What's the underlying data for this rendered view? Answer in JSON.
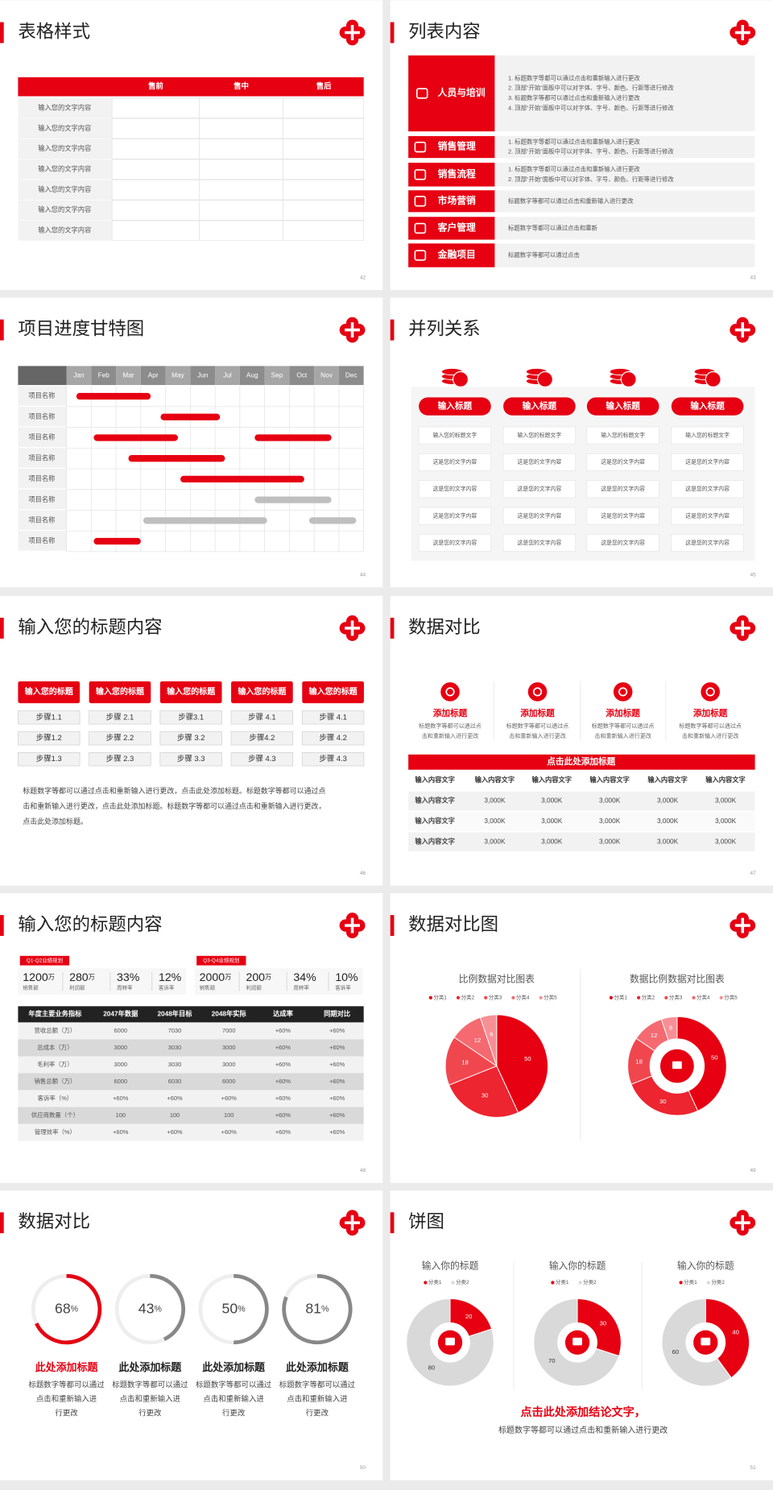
{
  "slides": [
    {
      "title": "表格样式",
      "page": "42",
      "table": {
        "header": [
          "售前",
          "售中",
          "售后"
        ],
        "rows": [
          "输入您的文字内容",
          "输入您的文字内容",
          "输入您的文字内容",
          "输入您的文字内容",
          "输入您的文字内容",
          "输入您的文字内容",
          "输入您的文字内容"
        ]
      }
    },
    {
      "title": "列表内容",
      "page": "43",
      "list": [
        {
          "label": "人员与培训",
          "lines": [
            "1. 标题数字等都可以通过点击和重新输入进行更改",
            "2. 顶部“开始”面板中可以对字体、字号、颜色、行距等进行修改",
            "3. 标题数字等都可以通过点击和重新输入进行更改",
            "4. 顶部“开始”面板中可以对字体、字号、颜色、行距等进行修改"
          ]
        },
        {
          "label": "销售管理",
          "lines": [
            "1. 标题数字等都可以通过点击和重新输入进行更改",
            "2. 顶部“开始”面板中可以对字体、字号、颜色、行距等进行修改"
          ]
        },
        {
          "label": "销售流程",
          "lines": [
            "1. 标题数字等都可以通过点击和重新输入进行更改",
            "2. 顶部“开始”面板中可以对字体、字号、颜色、行距等进行修改"
          ]
        },
        {
          "label": "市场营销",
          "lines": [
            "标题数字等都可以通过点击和重新输入进行更改"
          ]
        },
        {
          "label": "客户管理",
          "lines": [
            "标题数字等都可以通过点击和重新"
          ]
        },
        {
          "label": "金融项目",
          "lines": [
            "标题数字等都可以通过点击"
          ]
        }
      ]
    },
    {
      "title": "项目进度甘特图",
      "page": "44",
      "gantt": {
        "months": [
          "Jan",
          "Feb",
          "Mar",
          "Apr",
          "May",
          "Jun",
          "Jul",
          "Aug",
          "Sep",
          "Oct",
          "Nov",
          "Dec"
        ],
        "tasks": [
          {
            "label": "项目名称",
            "bars": [
              {
                "start": 0.4,
                "end": 3.4,
                "color": "#e60012"
              }
            ]
          },
          {
            "label": "项目名称",
            "bars": [
              {
                "start": 3.8,
                "end": 6.2,
                "color": "#e60012"
              }
            ]
          },
          {
            "label": "项目名称",
            "bars": [
              {
                "start": 1.1,
                "end": 4.5,
                "color": "#e60012"
              },
              {
                "start": 7.6,
                "end": 10.7,
                "color": "#e60012"
              }
            ]
          },
          {
            "label": "项目名称",
            "bars": [
              {
                "start": 2.5,
                "end": 6.4,
                "color": "#e60012"
              }
            ]
          },
          {
            "label": "项目名称",
            "bars": [
              {
                "start": 4.6,
                "end": 9.6,
                "color": "#e60012"
              }
            ]
          },
          {
            "label": "项目名称",
            "bars": [
              {
                "start": 7.6,
                "end": 10.7,
                "color": "#bfbfbf"
              }
            ]
          },
          {
            "label": "项目名称",
            "bars": [
              {
                "start": 3.1,
                "end": 8.1,
                "color": "#bfbfbf"
              },
              {
                "start": 9.8,
                "end": 11.7,
                "color": "#bfbfbf"
              }
            ]
          },
          {
            "label": "项目名称",
            "bars": [
              {
                "start": 1.1,
                "end": 3.0,
                "color": "#e60012"
              }
            ]
          }
        ]
      }
    },
    {
      "title": "并列关系",
      "page": "45",
      "columns": [
        {
          "heading": "输入标题",
          "cells": [
            "输入您的标题文字",
            "这是您的文字内容",
            "这是您的文字内容",
            "这是您的文字内容",
            "这是您的文字内容"
          ]
        },
        {
          "heading": "输入标题",
          "cells": [
            "输入您的标题文字",
            "这是您的文字内容",
            "这是您的文字内容",
            "这是您的文字内容",
            "这是您的文字内容"
          ]
        },
        {
          "heading": "输入标题",
          "cells": [
            "输入您的标题文字",
            "这是您的文字内容",
            "这是您的文字内容",
            "这是您的文字内容",
            "这是您的文字内容"
          ]
        },
        {
          "heading": "输入标题",
          "cells": [
            "输入您的标题文字",
            "这是您的文字内容",
            "这是您的文字内容",
            "这是您的文字内容",
            "这是您的文字内容"
          ]
        }
      ]
    },
    {
      "title": "输入您的标题内容",
      "page": "46",
      "steps": [
        {
          "heading": "输入您的标题",
          "items": [
            "步骤1.1",
            "步骤1.2",
            "步骤1.3"
          ]
        },
        {
          "heading": "输入您的标题",
          "items": [
            "步骤 2.1",
            "步骤 2.2",
            "步骤 2.3"
          ]
        },
        {
          "heading": "输入您的标题",
          "items": [
            "步骤3.1",
            "步骤 3.2",
            "步骤 3.3"
          ]
        },
        {
          "heading": "输入您的标题",
          "items": [
            "步骤 4.1",
            "步骤4.2",
            "步骤 4.3"
          ]
        },
        {
          "heading": "输入您的标题",
          "items": [
            "步骤 4.1",
            "步骤 4.2",
            "步骤 4.3"
          ]
        }
      ],
      "paragraph": [
        "标题数字等都可以通过点击和重新输入进行更改，点击此处添加标题。标题数字等都可以通过点",
        "击和重新输入进行更改，点击此处添加标题。标题数字等都可以通过点击和重新输入进行更改，",
        "点击此处添加标题。"
      ]
    },
    {
      "title": "数据对比",
      "page": "47",
      "items": [
        {
          "title": "添加标题",
          "text": [
            "标题数字等都可以通过点",
            "击和重新输入进行更改"
          ]
        },
        {
          "title": "添加标题",
          "text": [
            "标题数字等都可以通过点",
            "击和重新输入进行更改"
          ]
        },
        {
          "title": "添加标题",
          "text": [
            "标题数字等都可以通过点",
            "击和重新输入进行更改"
          ]
        },
        {
          "title": "添加标题",
          "text": [
            "标题数字等都可以通过点",
            "击和重新输入进行更改"
          ]
        }
      ],
      "banner": "点击此处添加标题",
      "table": {
        "header": [
          "输入内容文字",
          "输入内容文字",
          "输入内容文字",
          "输入内容文字",
          "输入内容文字",
          "输入内容文字"
        ],
        "rows": [
          [
            "输入内容文字",
            "3,000K",
            "3,000K",
            "3,000K",
            "3,000K",
            "3,000K"
          ],
          [
            "输入内容文字",
            "3,000K",
            "3,000K",
            "3,000K",
            "3,000K",
            "3,000K"
          ],
          [
            "输入内容文字",
            "3,000K",
            "3,000K",
            "3,000K",
            "3,000K",
            "3,000K"
          ]
        ]
      }
    },
    {
      "title": "输入您的标题内容",
      "page": "48",
      "groups": [
        {
          "tag": "Q1-Q2业绩规划",
          "stats": [
            {
              "value": "1200",
              "unit": "万",
              "label": "销售额"
            },
            {
              "value": "280",
              "unit": "万",
              "label": "利润额"
            },
            {
              "value": "33%",
              "label": "周转率"
            },
            {
              "value": "12%",
              "label": "客诉率"
            }
          ]
        },
        {
          "tag": "Q3-Q4业绩规划",
          "stats": [
            {
              "value": "2000",
              "unit": "万",
              "label": "销售额"
            },
            {
              "value": "200",
              "unit": "万",
              "label": "利润额"
            },
            {
              "value": "34%",
              "label": "周转率"
            },
            {
              "value": "10%",
              "label": "客诉率"
            }
          ]
        }
      ],
      "table": {
        "header": [
          "年度主要业务指标",
          "2047年数据",
          "2048年目标",
          "2048年实际",
          "达成率",
          "同期对比"
        ],
        "rows": [
          [
            "营收总额（万）",
            "6000",
            "7030",
            "7000",
            "+60%",
            "+60%"
          ],
          [
            "总成本（万）",
            "3000",
            "3030",
            "3000",
            "+60%",
            "+60%"
          ],
          [
            "毛利率（万）",
            "3000",
            "3030",
            "3000",
            "+60%",
            "+60%"
          ],
          [
            "销售总额（万）",
            "6000",
            "6030",
            "6000",
            "+60%",
            "+60%"
          ],
          [
            "客诉率（%）",
            "+60%",
            "+60%",
            "+60%",
            "+60%",
            "+60%"
          ],
          [
            "供应商数量（个）",
            "100",
            "100",
            "100",
            "+60%",
            "+60%"
          ],
          [
            "管理效率（%）",
            "+60%",
            "+60%",
            "+60%",
            "+60%",
            "+60%"
          ]
        ]
      }
    },
    {
      "title": "数据对比图",
      "page": "49",
      "charts": [
        {
          "type": "pie",
          "title": "比例数据对比图表",
          "categories": [
            "分类1",
            "分类2",
            "分类3",
            "分类4",
            "分类5"
          ],
          "values": [
            50,
            30,
            18,
            12,
            6
          ],
          "colors": [
            "#e60012",
            "#ec2530",
            "#f0474f",
            "#f46a70",
            "#f79096"
          ]
        },
        {
          "type": "donut",
          "title": "数据比例数据对比图表",
          "categories": [
            "分类1",
            "分类2",
            "分类3",
            "分类4",
            "分类5"
          ],
          "values": [
            50,
            30,
            18,
            12,
            6
          ],
          "colors": [
            "#e60012",
            "#ec2530",
            "#f0474f",
            "#f46a70",
            "#f79096"
          ]
        }
      ]
    },
    {
      "title": "数据对比",
      "page": "50",
      "gauges": [
        {
          "value": 68,
          "unit": "%",
          "title": "此处添加标题",
          "text": [
            "标题数字等都可以通过",
            "点击和重新输入进",
            "行更改"
          ],
          "color": "#e60012"
        },
        {
          "value": 43,
          "unit": "%",
          "title": "此处添加标题",
          "text": [
            "标题数字等都可以通过",
            "点击和重新输入进",
            "行更改"
          ],
          "color": "#888888"
        },
        {
          "value": 50,
          "unit": "%",
          "title": "此处添加标题",
          "text": [
            "标题数字等都可以通过",
            "点击和重新输入进",
            "行更改"
          ],
          "color": "#888888"
        },
        {
          "value": 81,
          "unit": "%",
          "title": "此处添加标题",
          "text": [
            "标题数字等都可以通过",
            "点击和重新输入进",
            "行更改"
          ],
          "color": "#888888"
        }
      ]
    },
    {
      "title": "饼图",
      "page": "51",
      "charts": [
        {
          "type": "donut",
          "title": "输入你的标题",
          "categories": [
            "分类1",
            "分类2"
          ],
          "values": [
            20,
            80
          ],
          "colors": [
            "#e60012",
            "#d9d9d9"
          ]
        },
        {
          "type": "donut",
          "title": "输入你的标题",
          "categories": [
            "分类1",
            "分类2"
          ],
          "values": [
            30,
            70
          ],
          "colors": [
            "#e60012",
            "#d9d9d9"
          ]
        },
        {
          "type": "donut",
          "title": "输入你的标题",
          "categories": [
            "分类1",
            "分类2"
          ],
          "values": [
            40,
            60
          ],
          "colors": [
            "#e60012",
            "#d9d9d9"
          ]
        }
      ],
      "conclusion": "点击此处添加结论文字，",
      "note": "标题数字等都可以通过点击和重新输入进行更改"
    }
  ]
}
